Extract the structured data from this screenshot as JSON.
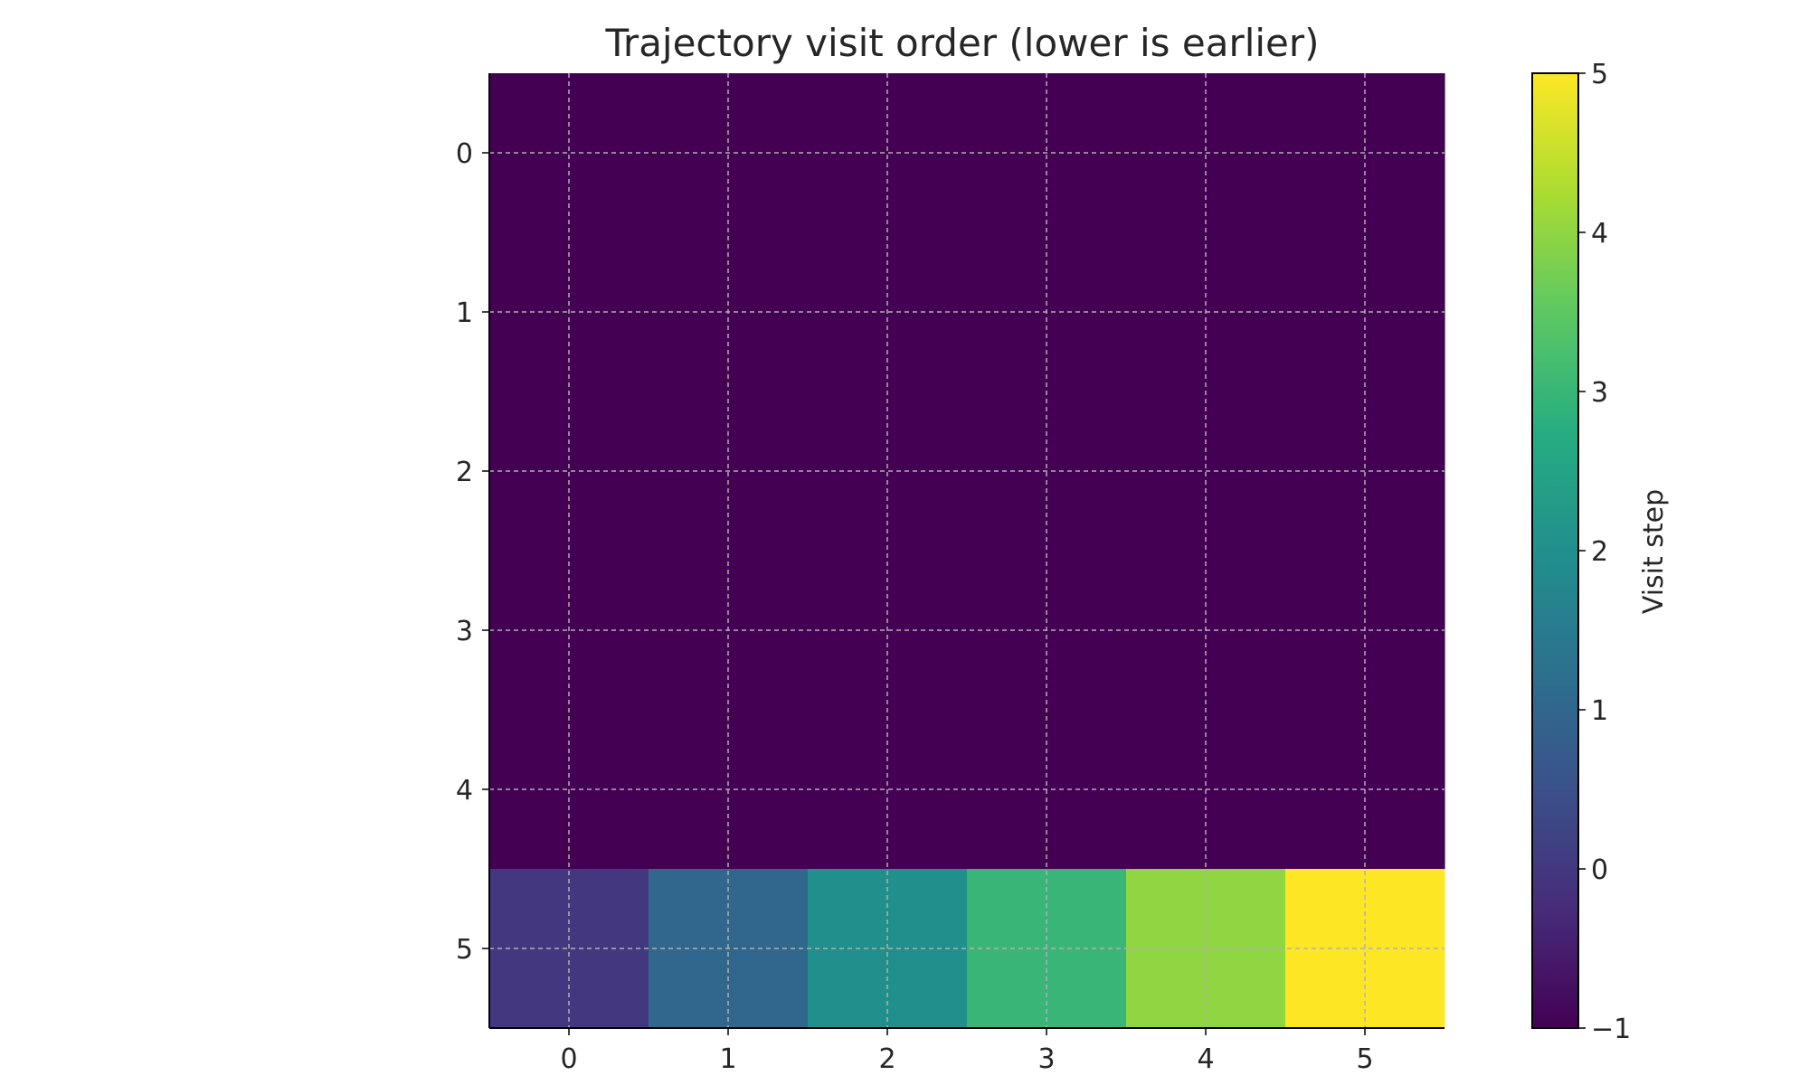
{
  "chart_data": {
    "type": "heatmap",
    "title": "Trajectory visit order (lower is earlier)",
    "x_ticks": [
      "0",
      "1",
      "2",
      "3",
      "4",
      "5"
    ],
    "y_ticks": [
      "0",
      "1",
      "2",
      "3",
      "4",
      "5"
    ],
    "values": [
      [
        -1,
        -1,
        -1,
        -1,
        -1,
        -1
      ],
      [
        -1,
        -1,
        -1,
        -1,
        -1,
        -1
      ],
      [
        -1,
        -1,
        -1,
        -1,
        -1,
        -1
      ],
      [
        -1,
        -1,
        -1,
        -1,
        -1,
        -1
      ],
      [
        -1,
        -1,
        -1,
        -1,
        -1,
        -1
      ],
      [
        0,
        1,
        2,
        3,
        4,
        5
      ]
    ],
    "colorbar": {
      "label": "Visit step",
      "min": -1,
      "max": 5,
      "ticks": [
        "−1",
        "0",
        "1",
        "2",
        "3",
        "4",
        "5"
      ],
      "tick_values": [
        -1,
        0,
        1,
        2,
        3,
        4,
        5
      ],
      "colormap": "viridis"
    },
    "grid": true,
    "legend": "colorbar-right"
  }
}
